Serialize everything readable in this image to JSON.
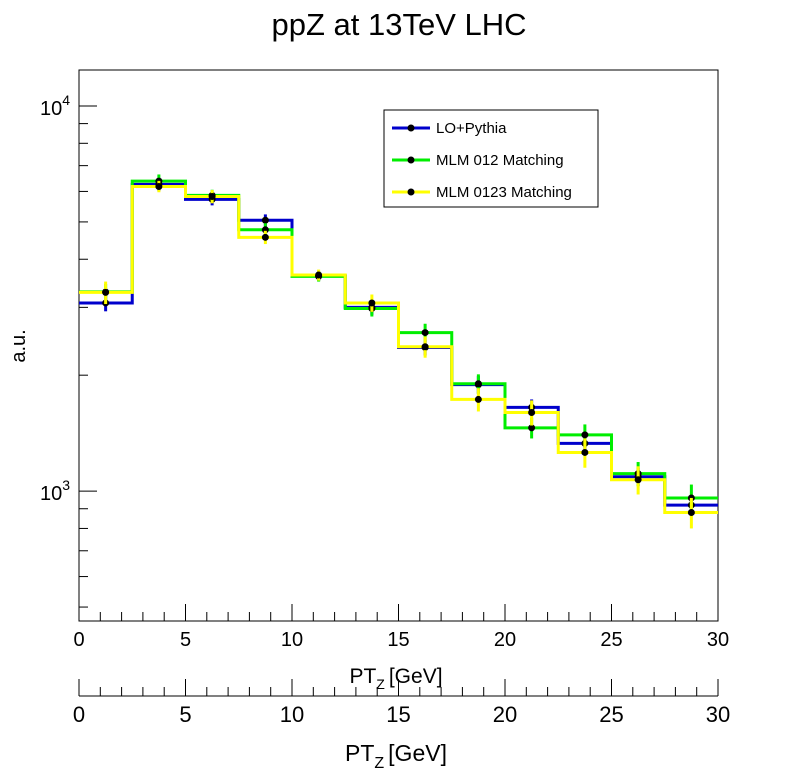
{
  "chart_data": {
    "type": "line",
    "title": "ppZ at 13TeV LHC",
    "ylabel": "a.u.",
    "xlabel_main": "PT",
    "xlabel_sub": "Z",
    "xlabel_unit": "[GeV]",
    "xlim": [
      0,
      30
    ],
    "ylim": [
      460,
      12400
    ],
    "yscale": "log",
    "x_ticks": [
      0,
      5,
      10,
      15,
      20,
      25,
      30
    ],
    "y_ticks": [
      {
        "base": "10",
        "exp": "3",
        "value": 1000
      },
      {
        "base": "10",
        "exp": "4",
        "value": 10000
      }
    ],
    "legend_position": "top-right",
    "bin_edges": [
      0,
      2.5,
      5,
      7.5,
      10,
      12.5,
      15,
      17.5,
      20,
      22.5,
      25,
      27.5,
      30
    ],
    "series": [
      {
        "name": "LO+Pythia",
        "color": "#0000cc",
        "values": [
          3080,
          6260,
          5720,
          5050,
          3620,
          3000,
          2360,
          1890,
          1650,
          1330,
          1090,
          920
        ],
        "errors": [
          150,
          250,
          200,
          180,
          110,
          130,
          110,
          100,
          80,
          90,
          60,
          55
        ]
      },
      {
        "name": "MLM 012 Matching",
        "color": "#00ee00",
        "values": [
          3290,
          6380,
          5860,
          4770,
          3610,
          2980,
          2580,
          1900,
          1460,
          1400,
          1110,
          960
        ],
        "errors": [
          160,
          260,
          200,
          190,
          110,
          140,
          140,
          110,
          90,
          90,
          80,
          80
        ]
      },
      {
        "name": "MLM 0123 Matching",
        "color": "#ffff00",
        "values": [
          3280,
          6180,
          5820,
          4560,
          3640,
          3080,
          2370,
          1730,
          1600,
          1260,
          1070,
          880
        ],
        "errors": [
          220,
          210,
          230,
          180,
          120,
          160,
          150,
          120,
          120,
          110,
          90,
          80
        ]
      }
    ]
  }
}
